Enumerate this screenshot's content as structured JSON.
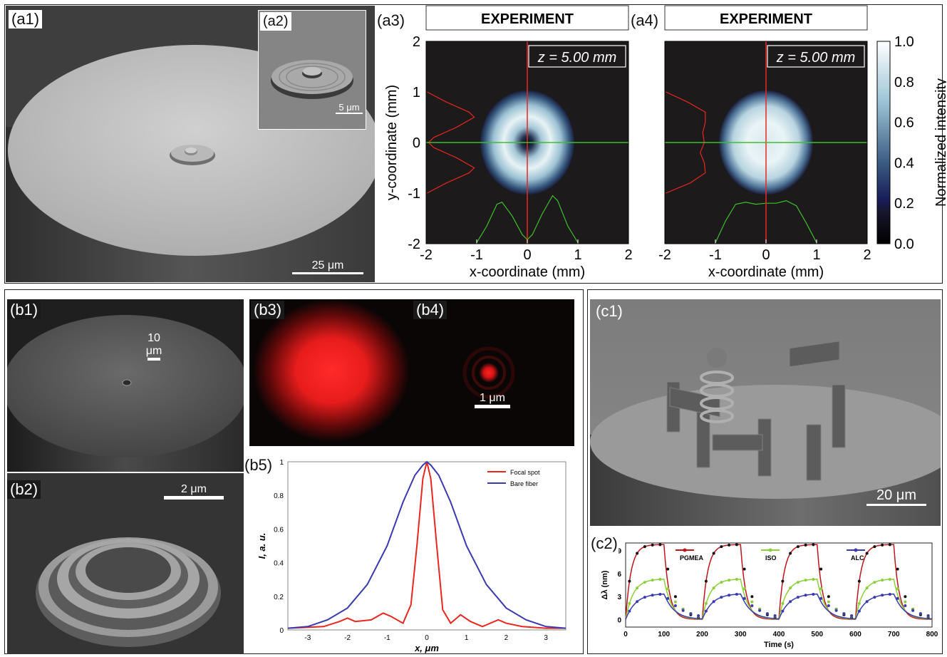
{
  "labels": {
    "a1": "(a1)",
    "a2": "(a2)",
    "a3": "(a3)",
    "a4": "(a4)",
    "b1": "(b1)",
    "b2": "(b2)",
    "b3": "(b3)",
    "b4": "(b4)",
    "b5": "(b5)",
    "c1": "(c1)",
    "c2": "(c2)"
  },
  "scalebars": {
    "a1": "25 μm",
    "a2": "5 μm",
    "b1": "10 μm",
    "b2": "2 μm",
    "b4": "1 μm",
    "c1": "20 μm"
  },
  "colors": {
    "red": "#e8271f",
    "green": "#3fbf2e",
    "blue": "#3a3ab0",
    "dark": "#1c1a1a"
  },
  "chart_data": [
    {
      "type": "heatmap",
      "id": "a3",
      "header": "EXPERIMENT",
      "annotation": "z = 5.00 mm",
      "xlabel": "x-coordinate (mm)",
      "ylabel": "y-coordinate (mm)",
      "xlim": [
        -2,
        2
      ],
      "ylim": [
        -2,
        2
      ],
      "xticks": [
        "-2",
        "-1",
        "0",
        "1",
        "2"
      ],
      "yticks": [
        "-2",
        "-1",
        "0",
        "1",
        "2"
      ],
      "profile": "donut",
      "horizontal_profile": {
        "x": [
          -1.0,
          -0.8,
          -0.6,
          -0.5,
          -0.3,
          -0.1,
          0,
          0.1,
          0.3,
          0.5,
          0.6,
          0.8,
          1.0
        ],
        "y": [
          0.02,
          0.35,
          0.78,
          0.82,
          0.55,
          0.18,
          0.08,
          0.18,
          0.6,
          0.95,
          0.85,
          0.35,
          0.02
        ]
      },
      "vertical_profile": {
        "y": [
          -1.0,
          -0.8,
          -0.6,
          -0.5,
          -0.3,
          -0.1,
          0,
          0.1,
          0.3,
          0.5,
          0.6,
          0.8,
          1.0
        ],
        "x": [
          0.02,
          0.4,
          0.85,
          0.95,
          0.6,
          0.15,
          0.05,
          0.15,
          0.6,
          0.95,
          0.85,
          0.4,
          0.02
        ]
      }
    },
    {
      "type": "heatmap",
      "id": "a4",
      "header": "EXPERIMENT",
      "annotation": "z = 5.00 mm",
      "xlabel": "x-coordinate (mm)",
      "xlim": [
        -2,
        2
      ],
      "ylim": [
        -2,
        2
      ],
      "xticks": [
        "-2",
        "-1",
        "0",
        "1",
        "2"
      ],
      "profile": "flattop",
      "horizontal_profile": {
        "x": [
          -1.0,
          -0.8,
          -0.6,
          -0.4,
          -0.2,
          0,
          0.2,
          0.4,
          0.6,
          0.8,
          1.0
        ],
        "y": [
          0.02,
          0.45,
          0.78,
          0.82,
          0.78,
          0.8,
          0.8,
          0.85,
          0.75,
          0.4,
          0.02
        ]
      },
      "vertical_profile": {
        "y": [
          -1.0,
          -0.8,
          -0.6,
          -0.4,
          -0.2,
          0,
          0.2,
          0.4,
          0.6,
          0.8,
          1.0
        ],
        "x": [
          0.02,
          0.5,
          0.8,
          0.78,
          0.7,
          0.78,
          0.75,
          0.8,
          0.8,
          0.45,
          0.02
        ]
      },
      "colorbar": {
        "label": "Normalized intensity",
        "ticks": [
          "0.0",
          "0.2",
          "0.4",
          "0.6",
          "0.8",
          "1.0"
        ]
      }
    },
    {
      "type": "line",
      "id": "b5",
      "xlabel": "x, μm",
      "ylabel": "I, a. u.",
      "xlim": [
        -3.5,
        3.5
      ],
      "ylim": [
        0,
        1
      ],
      "xticks": [
        "-3",
        "-2",
        "-1",
        "0",
        "1",
        "2",
        "3"
      ],
      "yticks": [
        "0",
        "0.2",
        "0.4",
        "0.6",
        "0.8",
        "1"
      ],
      "series": [
        {
          "name": "Focal spot",
          "color": "#e8271f",
          "x": [
            -3.5,
            -2.6,
            -2.2,
            -2.0,
            -1.8,
            -1.4,
            -1.1,
            -0.9,
            -0.6,
            -0.4,
            -0.25,
            -0.1,
            0,
            0.1,
            0.25,
            0.4,
            0.6,
            0.85,
            1.1,
            1.4,
            1.8,
            2.0,
            2.4,
            3.0,
            3.5
          ],
          "y": [
            0.01,
            0.02,
            0.05,
            0.07,
            0.05,
            0.06,
            0.1,
            0.08,
            0.04,
            0.15,
            0.5,
            0.9,
            1.0,
            0.9,
            0.5,
            0.12,
            0.04,
            0.09,
            0.05,
            0.02,
            0.06,
            0.04,
            0.02,
            0.01,
            0.01
          ]
        },
        {
          "name": "Bare fiber",
          "color": "#3a3ab0",
          "x": [
            -3.5,
            -3.0,
            -2.5,
            -2.0,
            -1.5,
            -1.0,
            -0.6,
            -0.3,
            -0.1,
            0,
            0.1,
            0.3,
            0.6,
            1.0,
            1.5,
            2.0,
            2.5,
            3.0,
            3.5
          ],
          "y": [
            0.01,
            0.02,
            0.06,
            0.13,
            0.27,
            0.5,
            0.76,
            0.92,
            0.98,
            1.0,
            0.98,
            0.92,
            0.76,
            0.5,
            0.27,
            0.13,
            0.06,
            0.02,
            0.01
          ]
        }
      ]
    },
    {
      "type": "line",
      "id": "c2",
      "xlabel": "Time (s)",
      "ylabel": "Δλ (nm)",
      "xlim": [
        0,
        800
      ],
      "ylim": [
        -1,
        10
      ],
      "xticks": [
        "0",
        "100",
        "200",
        "300",
        "400",
        "500",
        "600",
        "700",
        "800"
      ],
      "yticks": [
        "0",
        "3",
        "6",
        "9"
      ],
      "series": [
        {
          "name": "PGMEA",
          "color": "#c0141b",
          "plateau": 9.8
        },
        {
          "name": "ISO",
          "color": "#8bd03a",
          "plateau": 5.3
        },
        {
          "name": "ALC",
          "color": "#3a3ab0",
          "plateau": 3.4
        }
      ],
      "cycles": [
        [
          0,
          100
        ],
        [
          200,
          300
        ],
        [
          400,
          500
        ],
        [
          600,
          700
        ]
      ]
    }
  ]
}
